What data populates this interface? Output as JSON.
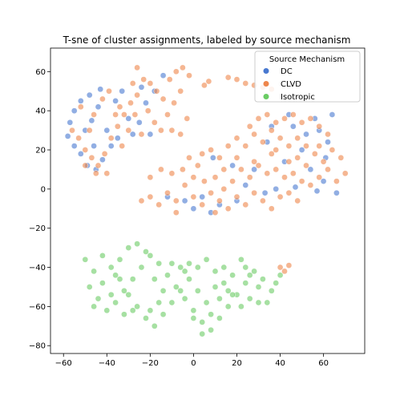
{
  "chart_data": {
    "type": "scatter",
    "title": "T-sne of cluster assignments, labeled by source mechanism",
    "xlabel": "",
    "ylabel": "",
    "xlim": [
      -66,
      79
    ],
    "ylim": [
      -84,
      72
    ],
    "xticks": [
      -60,
      -40,
      -20,
      0,
      20,
      40,
      60
    ],
    "yticks": [
      -80,
      -60,
      -40,
      -20,
      0,
      20,
      40,
      60
    ],
    "xtick_labels": [
      "−60",
      "−40",
      "−20",
      "0",
      "20",
      "40",
      "60"
    ],
    "ytick_labels": [
      "−80",
      "−60",
      "−40",
      "−20",
      "0",
      "20",
      "40",
      "60"
    ],
    "grid": false,
    "legend": {
      "title": "Source Mechanism",
      "position": "top-right",
      "entries": [
        "DC",
        "CLVD",
        "Isotropic"
      ]
    },
    "series": [
      {
        "name": "DC",
        "color": "#4878d0",
        "points": [
          [
            -58,
            27
          ],
          [
            -55,
            22
          ],
          [
            -52,
            18
          ],
          [
            -49,
            12
          ],
          [
            -45,
            10
          ],
          [
            -50,
            30
          ],
          [
            -47,
            35
          ],
          [
            -55,
            40
          ],
          [
            -52,
            45
          ],
          [
            -48,
            48
          ],
          [
            -44,
            42
          ],
          [
            -40,
            30
          ],
          [
            -38,
            22
          ],
          [
            -42,
            15
          ],
          [
            -36,
            45
          ],
          [
            -33,
            50
          ],
          [
            -30,
            36
          ],
          [
            -28,
            28
          ],
          [
            -25,
            34
          ],
          [
            -22,
            44
          ],
          [
            -18,
            50
          ],
          [
            -14,
            58
          ],
          [
            -24,
            52
          ],
          [
            -35,
            26
          ],
          [
            -57,
            34
          ],
          [
            -46,
            22
          ],
          [
            -43,
            51
          ],
          [
            -20,
            28
          ],
          [
            -4,
            -6
          ],
          [
            0,
            -10
          ],
          [
            4,
            -4
          ],
          [
            8,
            -12
          ],
          [
            12,
            -8
          ],
          [
            18,
            12
          ],
          [
            24,
            2
          ],
          [
            28,
            10
          ],
          [
            34,
            24
          ],
          [
            38,
            0
          ],
          [
            42,
            14
          ],
          [
            46,
            32
          ],
          [
            50,
            20
          ],
          [
            54,
            10
          ],
          [
            56,
            36
          ],
          [
            60,
            4
          ],
          [
            62,
            24
          ],
          [
            64,
            38
          ],
          [
            66,
            -2
          ],
          [
            58,
            30
          ],
          [
            47,
            1
          ],
          [
            33,
            -2
          ],
          [
            20,
            -6
          ],
          [
            52,
            28
          ],
          [
            -12,
            -4
          ],
          [
            9,
            16
          ],
          [
            44,
            38
          ],
          [
            61,
            16
          ],
          [
            36,
            32
          ],
          [
            57,
            -1
          ]
        ]
      },
      {
        "name": "CLVD",
        "color": "#ee854a",
        "points": [
          [
            -56,
            30
          ],
          [
            -53,
            26
          ],
          [
            -50,
            20
          ],
          [
            -47,
            16
          ],
          [
            -44,
            12
          ],
          [
            -41,
            18
          ],
          [
            -38,
            26
          ],
          [
            -35,
            32
          ],
          [
            -32,
            38
          ],
          [
            -29,
            44
          ],
          [
            -26,
            48
          ],
          [
            -23,
            56
          ],
          [
            -20,
            54
          ],
          [
            -17,
            50
          ],
          [
            -14,
            46
          ],
          [
            -11,
            56
          ],
          [
            -8,
            60
          ],
          [
            -5,
            62
          ],
          [
            -2,
            58
          ],
          [
            -34,
            42
          ],
          [
            -30,
            30
          ],
          [
            -27,
            38
          ],
          [
            -24,
            28
          ],
          [
            -21,
            40
          ],
          [
            -18,
            34
          ],
          [
            -15,
            30
          ],
          [
            -12,
            38
          ],
          [
            -9,
            44
          ],
          [
            -6,
            50
          ],
          [
            -3,
            36
          ],
          [
            -46,
            38
          ],
          [
            -52,
            42
          ],
          [
            -48,
            30
          ],
          [
            -42,
            46
          ],
          [
            -39,
            50
          ],
          [
            -36,
            38
          ],
          [
            -33,
            22
          ],
          [
            -45,
            8
          ],
          [
            -50,
            12
          ],
          [
            -40,
            8
          ],
          [
            5,
            53
          ],
          [
            7,
            55
          ],
          [
            16,
            57
          ],
          [
            20,
            56
          ],
          [
            24,
            54
          ],
          [
            28,
            53
          ],
          [
            32,
            52
          ],
          [
            36,
            51
          ],
          [
            -24,
            -6
          ],
          [
            -20,
            -4
          ],
          [
            -16,
            -8
          ],
          [
            -12,
            -2
          ],
          [
            -8,
            -6
          ],
          [
            -4,
            2
          ],
          [
            0,
            -4
          ],
          [
            4,
            -8
          ],
          [
            8,
            -2
          ],
          [
            12,
            -6
          ],
          [
            16,
            -10
          ],
          [
            20,
            -4
          ],
          [
            24,
            -8
          ],
          [
            28,
            -2
          ],
          [
            32,
            -6
          ],
          [
            36,
            -10
          ],
          [
            40,
            -4
          ],
          [
            44,
            -2
          ],
          [
            48,
            -6
          ],
          [
            -20,
            6
          ],
          [
            -15,
            10
          ],
          [
            -10,
            8
          ],
          [
            -5,
            10
          ],
          [
            0,
            6
          ],
          [
            5,
            4
          ],
          [
            10,
            6
          ],
          [
            14,
            0
          ],
          [
            18,
            4
          ],
          [
            22,
            10
          ],
          [
            26,
            6
          ],
          [
            30,
            12
          ],
          [
            34,
            8
          ],
          [
            38,
            10
          ],
          [
            42,
            6
          ],
          [
            46,
            8
          ],
          [
            50,
            4
          ],
          [
            54,
            2
          ],
          [
            58,
            6
          ],
          [
            62,
            10
          ],
          [
            66,
            4
          ],
          [
            70,
            8
          ],
          [
            -2,
            16
          ],
          [
            4,
            18
          ],
          [
            8,
            20
          ],
          [
            12,
            16
          ],
          [
            16,
            22
          ],
          [
            20,
            26
          ],
          [
            24,
            22
          ],
          [
            28,
            28
          ],
          [
            32,
            24
          ],
          [
            36,
            30
          ],
          [
            40,
            26
          ],
          [
            44,
            22
          ],
          [
            48,
            26
          ],
          [
            52,
            22
          ],
          [
            56,
            18
          ],
          [
            60,
            14
          ],
          [
            64,
            20
          ],
          [
            68,
            16
          ],
          [
            26,
            32
          ],
          [
            30,
            36
          ],
          [
            34,
            38
          ],
          [
            38,
            34
          ],
          [
            42,
            36
          ],
          [
            46,
            38
          ],
          [
            50,
            34
          ],
          [
            54,
            36
          ],
          [
            58,
            32
          ],
          [
            62,
            28
          ],
          [
            28,
            14
          ],
          [
            36,
            18
          ],
          [
            44,
            14
          ],
          [
            52,
            12
          ],
          [
            10,
            -12
          ],
          [
            -8,
            -12
          ],
          [
            2,
            12
          ],
          [
            38,
            20
          ],
          [
            58,
            22
          ],
          [
            40,
            -40
          ],
          [
            42,
            -42
          ],
          [
            44,
            -39
          ],
          [
            -10,
            30
          ],
          [
            -26,
            62
          ],
          [
            -6,
            28
          ],
          [
            -28,
            54
          ],
          [
            14,
            10
          ],
          [
            20,
            16
          ],
          [
            48,
            16
          ]
        ]
      },
      {
        "name": "Isotropic",
        "color": "#6acc64",
        "points": [
          [
            -50,
            -36
          ],
          [
            -46,
            -42
          ],
          [
            -48,
            -50
          ],
          [
            -44,
            -56
          ],
          [
            -40,
            -62
          ],
          [
            -36,
            -58
          ],
          [
            -32,
            -52
          ],
          [
            -28,
            -46
          ],
          [
            -24,
            -40
          ],
          [
            -20,
            -34
          ],
          [
            -16,
            -38
          ],
          [
            -12,
            -44
          ],
          [
            -8,
            -50
          ],
          [
            -4,
            -56
          ],
          [
            0,
            -62
          ],
          [
            4,
            -68
          ],
          [
            8,
            -72
          ],
          [
            12,
            -66
          ],
          [
            16,
            -60
          ],
          [
            20,
            -54
          ],
          [
            24,
            -48
          ],
          [
            28,
            -42
          ],
          [
            32,
            -46
          ],
          [
            36,
            -52
          ],
          [
            40,
            -44
          ],
          [
            -42,
            -34
          ],
          [
            -38,
            -40
          ],
          [
            -34,
            -46
          ],
          [
            -30,
            -54
          ],
          [
            -26,
            -60
          ],
          [
            -22,
            -66
          ],
          [
            -18,
            -70
          ],
          [
            -14,
            -64
          ],
          [
            -10,
            -58
          ],
          [
            -6,
            -52
          ],
          [
            -2,
            -46
          ],
          [
            2,
            -40
          ],
          [
            6,
            -36
          ],
          [
            10,
            -42
          ],
          [
            14,
            -48
          ],
          [
            18,
            -54
          ],
          [
            22,
            -60
          ],
          [
            26,
            -56
          ],
          [
            30,
            -50
          ],
          [
            34,
            -58
          ],
          [
            -46,
            -60
          ],
          [
            -42,
            -48
          ],
          [
            -38,
            -54
          ],
          [
            -34,
            -36
          ],
          [
            -30,
            -30
          ],
          [
            -26,
            -28
          ],
          [
            -22,
            -32
          ],
          [
            -18,
            -46
          ],
          [
            -14,
            -52
          ],
          [
            -10,
            -38
          ],
          [
            -6,
            -40
          ],
          [
            -2,
            -38
          ],
          [
            2,
            -52
          ],
          [
            6,
            -58
          ],
          [
            10,
            -50
          ],
          [
            14,
            -40
          ],
          [
            18,
            -44
          ],
          [
            22,
            -36
          ],
          [
            26,
            -44
          ],
          [
            30,
            -58
          ],
          [
            38,
            -48
          ],
          [
            -16,
            -58
          ],
          [
            -20,
            -62
          ],
          [
            -28,
            -62
          ],
          [
            -32,
            -64
          ],
          [
            8,
            -64
          ],
          [
            4,
            -74
          ],
          [
            0,
            -66
          ],
          [
            -4,
            -42
          ],
          [
            16,
            -52
          ],
          [
            24,
            -40
          ],
          [
            12,
            -56
          ],
          [
            -36,
            -44
          ]
        ]
      }
    ]
  }
}
